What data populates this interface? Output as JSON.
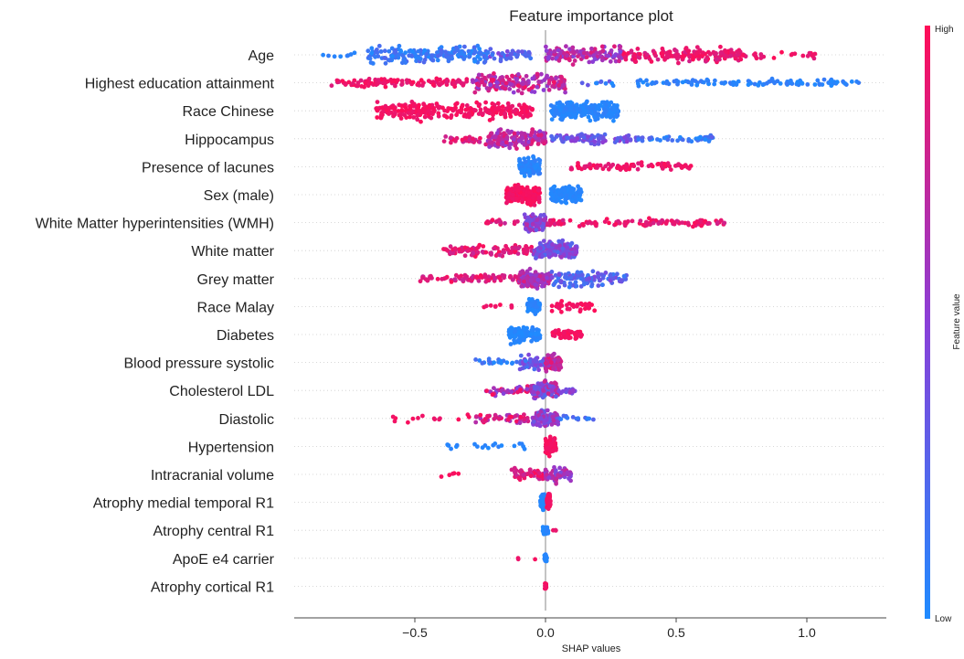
{
  "chart_data": {
    "type": "scatter",
    "subtype": "beeswarm",
    "title": "Feature importance plot",
    "xlabel": "SHAP values",
    "ylabel": "",
    "xlim": [
      -0.95,
      1.3
    ],
    "xticks": [
      -0.5,
      0.0,
      0.5,
      1.0
    ],
    "xtick_labels": [
      "−0.5",
      "0.0",
      "0.5",
      "1.0"
    ],
    "grid": false,
    "colorbar": {
      "label": "Feature value",
      "high_label": "High",
      "low_label": "Low",
      "low_color": "#1f8bff",
      "mid_color": "#8a3fd8",
      "high_color": "#ff0d57"
    },
    "features": [
      {
        "name": "Age",
        "points": [
          {
            "min": -0.87,
            "max": -0.7,
            "vmin": 0.0,
            "vmax": 0.1,
            "n": 8,
            "spread": 0.3
          },
          {
            "min": -0.68,
            "max": -0.22,
            "vmin": 0.0,
            "vmax": 0.25,
            "n": 190,
            "spread": 1.0
          },
          {
            "min": -0.22,
            "max": -0.05,
            "vmin": 0.1,
            "vmax": 0.5,
            "n": 40,
            "spread": 0.6
          },
          {
            "min": 0.0,
            "max": 0.3,
            "vmin": 0.45,
            "vmax": 0.9,
            "n": 130,
            "spread": 1.0
          },
          {
            "min": 0.3,
            "max": 0.75,
            "vmin": 0.8,
            "vmax": 1.0,
            "n": 160,
            "spread": 0.8
          },
          {
            "min": 0.75,
            "max": 1.04,
            "vmin": 0.85,
            "vmax": 1.0,
            "n": 25,
            "spread": 0.4
          }
        ]
      },
      {
        "name": "Highest education attainment",
        "points": [
          {
            "min": -0.82,
            "max": -0.3,
            "vmin": 0.85,
            "vmax": 1.0,
            "n": 110,
            "spread": 0.5
          },
          {
            "min": -0.28,
            "max": 0.08,
            "vmin": 0.5,
            "vmax": 0.95,
            "n": 170,
            "spread": 1.0
          },
          {
            "min": 0.1,
            "max": 0.28,
            "vmin": 0.0,
            "vmax": 0.4,
            "n": 10,
            "spread": 0.3
          },
          {
            "min": 0.35,
            "max": 1.2,
            "vmin": 0.0,
            "vmax": 0.12,
            "n": 110,
            "spread": 0.4
          }
        ]
      },
      {
        "name": "Race Chinese",
        "points": [
          {
            "min": -0.65,
            "max": -0.05,
            "vmin": 0.9,
            "vmax": 1.0,
            "n": 260,
            "spread": 1.0
          },
          {
            "min": 0.02,
            "max": 0.28,
            "vmin": 0.0,
            "vmax": 0.08,
            "n": 260,
            "spread": 1.0
          }
        ]
      },
      {
        "name": "Hippocampus",
        "points": [
          {
            "min": -0.39,
            "max": -0.2,
            "vmin": 0.75,
            "vmax": 1.0,
            "n": 30,
            "spread": 0.5
          },
          {
            "min": -0.22,
            "max": 0.0,
            "vmin": 0.5,
            "vmax": 0.9,
            "n": 170,
            "spread": 1.0
          },
          {
            "min": 0.02,
            "max": 0.35,
            "vmin": 0.2,
            "vmax": 0.55,
            "n": 90,
            "spread": 0.6
          },
          {
            "min": 0.35,
            "max": 0.64,
            "vmin": 0.0,
            "vmax": 0.3,
            "n": 45,
            "spread": 0.4
          }
        ]
      },
      {
        "name": "Presence of lacunes",
        "points": [
          {
            "min": -0.1,
            "max": -0.02,
            "vmin": 0.0,
            "vmax": 0.1,
            "n": 130,
            "spread": 1.0
          },
          {
            "min": 0.08,
            "max": 0.56,
            "vmin": 0.85,
            "vmax": 1.0,
            "n": 75,
            "spread": 0.5
          }
        ]
      },
      {
        "name": "Sex (male)",
        "points": [
          {
            "min": -0.15,
            "max": -0.02,
            "vmin": 0.92,
            "vmax": 1.0,
            "n": 190,
            "spread": 1.0
          },
          {
            "min": 0.02,
            "max": 0.14,
            "vmin": 0.0,
            "vmax": 0.06,
            "n": 170,
            "spread": 1.0
          }
        ]
      },
      {
        "name": "White Matter hyperintensities (WMH)",
        "points": [
          {
            "min": -0.24,
            "max": -0.1,
            "vmin": 0.7,
            "vmax": 1.0,
            "n": 20,
            "spread": 0.4
          },
          {
            "min": -0.08,
            "max": 0.0,
            "vmin": 0.3,
            "vmax": 0.7,
            "n": 110,
            "spread": 1.0
          },
          {
            "min": 0.0,
            "max": 0.69,
            "vmin": 0.8,
            "vmax": 1.0,
            "n": 110,
            "spread": 0.4
          }
        ]
      },
      {
        "name": "White matter",
        "points": [
          {
            "min": -0.39,
            "max": -0.05,
            "vmin": 0.75,
            "vmax": 1.0,
            "n": 100,
            "spread": 0.6
          },
          {
            "min": -0.05,
            "max": 0.12,
            "vmin": 0.2,
            "vmax": 0.6,
            "n": 170,
            "spread": 1.0
          }
        ]
      },
      {
        "name": "Grey matter",
        "points": [
          {
            "min": -0.49,
            "max": -0.1,
            "vmin": 0.75,
            "vmax": 1.0,
            "n": 70,
            "spread": 0.6
          },
          {
            "min": -0.1,
            "max": 0.02,
            "vmin": 0.5,
            "vmax": 0.85,
            "n": 150,
            "spread": 1.0
          },
          {
            "min": 0.02,
            "max": 0.31,
            "vmin": 0.1,
            "vmax": 0.45,
            "n": 110,
            "spread": 0.9
          }
        ]
      },
      {
        "name": "Race Malay",
        "points": [
          {
            "min": -0.25,
            "max": -0.1,
            "vmin": 0.9,
            "vmax": 1.0,
            "n": 8,
            "spread": 0.3
          },
          {
            "min": -0.07,
            "max": -0.02,
            "vmin": 0.0,
            "vmax": 0.08,
            "n": 70,
            "spread": 0.8
          },
          {
            "min": 0.02,
            "max": 0.19,
            "vmin": 0.9,
            "vmax": 1.0,
            "n": 40,
            "spread": 0.6
          }
        ]
      },
      {
        "name": "Diabetes",
        "points": [
          {
            "min": -0.14,
            "max": -0.02,
            "vmin": 0.0,
            "vmax": 0.06,
            "n": 130,
            "spread": 0.9
          },
          {
            "min": 0.02,
            "max": 0.14,
            "vmin": 0.92,
            "vmax": 1.0,
            "n": 50,
            "spread": 0.6
          }
        ]
      },
      {
        "name": "Blood pressure systolic",
        "points": [
          {
            "min": -0.27,
            "max": -0.1,
            "vmin": 0.0,
            "vmax": 0.2,
            "n": 20,
            "spread": 0.4
          },
          {
            "min": -0.1,
            "max": 0.0,
            "vmin": 0.1,
            "vmax": 0.5,
            "n": 70,
            "spread": 0.7
          },
          {
            "min": 0.0,
            "max": 0.06,
            "vmin": 0.6,
            "vmax": 0.95,
            "n": 90,
            "spread": 1.0
          }
        ]
      },
      {
        "name": "Cholesterol LDL",
        "points": [
          {
            "min": -0.23,
            "max": -0.05,
            "vmin": 0.4,
            "vmax": 1.0,
            "n": 50,
            "spread": 0.6
          },
          {
            "min": -0.05,
            "max": 0.05,
            "vmin": 0.2,
            "vmax": 0.8,
            "n": 130,
            "spread": 1.0
          },
          {
            "min": 0.05,
            "max": 0.13,
            "vmin": 0.3,
            "vmax": 0.6,
            "n": 15,
            "spread": 0.4
          }
        ]
      },
      {
        "name": "Diastolic",
        "points": [
          {
            "min": -0.59,
            "max": -0.28,
            "vmin": 0.9,
            "vmax": 1.0,
            "n": 14,
            "spread": 0.5
          },
          {
            "min": -0.27,
            "max": -0.05,
            "vmin": 0.6,
            "vmax": 1.0,
            "n": 50,
            "spread": 0.6
          },
          {
            "min": -0.05,
            "max": 0.05,
            "vmin": 0.3,
            "vmax": 0.7,
            "n": 110,
            "spread": 1.0
          },
          {
            "min": 0.05,
            "max": 0.2,
            "vmin": 0.0,
            "vmax": 0.3,
            "n": 15,
            "spread": 0.4
          }
        ]
      },
      {
        "name": "Hypertension",
        "points": [
          {
            "min": -0.43,
            "max": -0.02,
            "vmin": 0.0,
            "vmax": 0.08,
            "n": 20,
            "spread": 0.4
          },
          {
            "min": 0.0,
            "max": 0.04,
            "vmin": 0.92,
            "vmax": 1.0,
            "n": 90,
            "spread": 1.0
          }
        ]
      },
      {
        "name": "Intracranial volume",
        "points": [
          {
            "min": -0.47,
            "max": -0.33,
            "vmin": 0.9,
            "vmax": 1.0,
            "n": 5,
            "spread": 0.3
          },
          {
            "min": -0.13,
            "max": 0.0,
            "vmin": 0.75,
            "vmax": 1.0,
            "n": 50,
            "spread": 0.7
          },
          {
            "min": 0.0,
            "max": 0.1,
            "vmin": 0.4,
            "vmax": 0.8,
            "n": 60,
            "spread": 0.9
          }
        ]
      },
      {
        "name": "Atrophy medial temporal R1",
        "points": [
          {
            "min": -0.02,
            "max": 0.0,
            "vmin": 0.0,
            "vmax": 0.05,
            "n": 60,
            "spread": 1.0
          },
          {
            "min": 0.005,
            "max": 0.02,
            "vmin": 0.92,
            "vmax": 1.0,
            "n": 40,
            "spread": 1.0
          }
        ]
      },
      {
        "name": "Atrophy central R1",
        "points": [
          {
            "min": -0.01,
            "max": 0.01,
            "vmin": 0.0,
            "vmax": 0.08,
            "n": 35,
            "spread": 0.5
          },
          {
            "min": 0.02,
            "max": 0.05,
            "vmin": 0.9,
            "vmax": 1.0,
            "n": 4,
            "spread": 0.2
          }
        ]
      },
      {
        "name": "ApoE e4 carrier",
        "points": [
          {
            "min": -0.12,
            "max": -0.02,
            "vmin": 0.9,
            "vmax": 1.0,
            "n": 3,
            "spread": 0.2
          },
          {
            "min": -0.005,
            "max": 0.005,
            "vmin": 0.0,
            "vmax": 0.08,
            "n": 25,
            "spread": 0.4
          }
        ]
      },
      {
        "name": "Atrophy cortical R1",
        "points": [
          {
            "min": -0.003,
            "max": 0.003,
            "vmin": 0.9,
            "vmax": 1.0,
            "n": 30,
            "spread": 0.4
          }
        ]
      }
    ]
  }
}
